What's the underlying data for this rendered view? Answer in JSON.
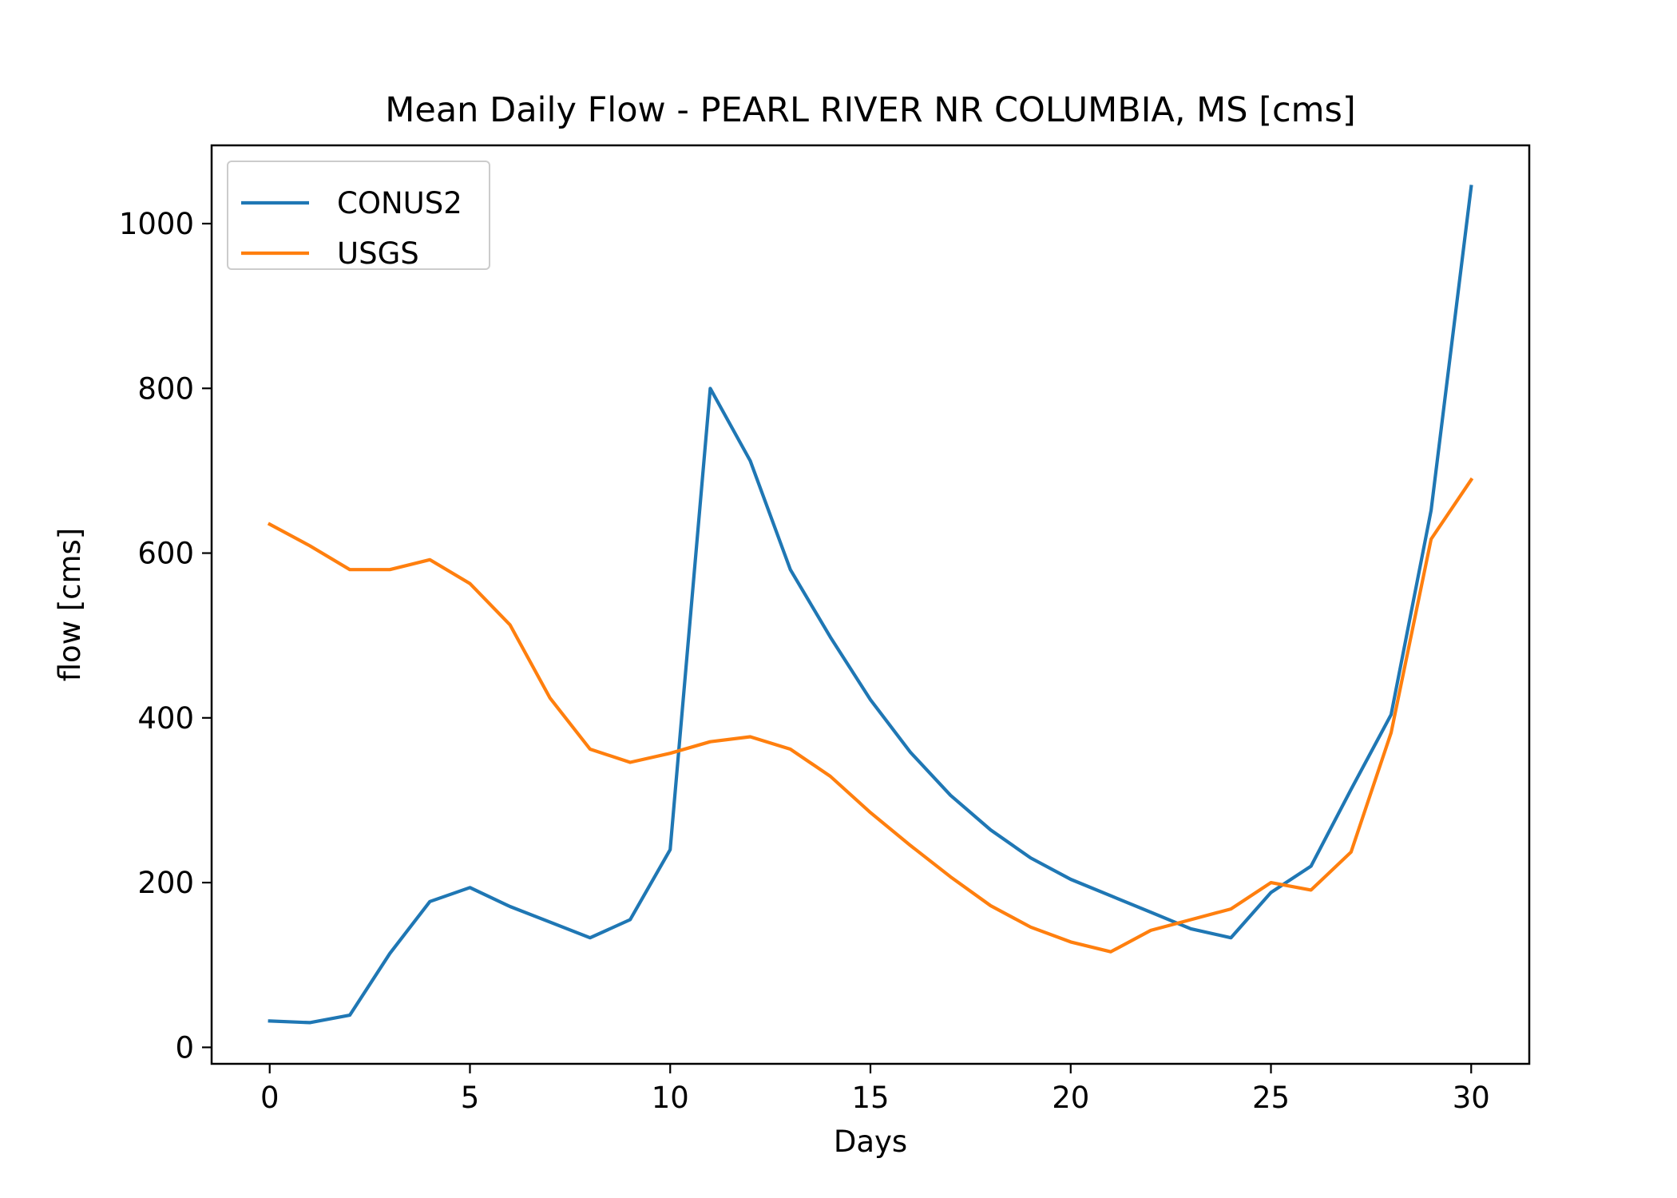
{
  "chart_data": {
    "type": "line",
    "title": "Mean Daily Flow - PEARL RIVER NR COLUMBIA, MS [cms]",
    "xlabel": "Days",
    "ylabel": "flow [cms]",
    "xlim": [
      -1.45,
      31.45
    ],
    "ylim": [
      -20,
      1095
    ],
    "xticks": [
      0,
      5,
      10,
      15,
      20,
      25,
      30
    ],
    "xtick_labels": [
      "0",
      "5",
      "10",
      "15",
      "20",
      "25",
      "30"
    ],
    "yticks": [
      0,
      200,
      400,
      600,
      800,
      1000
    ],
    "ytick_labels": [
      "0",
      "200",
      "400",
      "600",
      "800",
      "1000"
    ],
    "grid": false,
    "legend": {
      "position": "upper-left"
    },
    "x": [
      0,
      1,
      2,
      3,
      4,
      5,
      6,
      7,
      8,
      9,
      10,
      11,
      12,
      13,
      14,
      15,
      16,
      17,
      18,
      19,
      20,
      21,
      22,
      23,
      24,
      25,
      26,
      27,
      28,
      29,
      30
    ],
    "series": [
      {
        "name": "CONUS2",
        "color": "#1f77b4",
        "values": [
          32,
          30,
          39,
          114,
          177,
          194,
          171,
          152,
          133,
          155,
          240,
          800,
          712,
          580,
          498,
          422,
          358,
          306,
          264,
          230,
          204,
          184,
          164,
          144,
          133,
          188,
          220,
          313,
          404,
          652,
          1045
        ]
      },
      {
        "name": "USGS",
        "color": "#ff7f0e",
        "values": [
          635,
          609,
          580,
          580,
          592,
          563,
          513,
          424,
          362,
          346,
          357,
          371,
          377,
          362,
          329,
          285,
          245,
          207,
          172,
          146,
          128,
          116,
          142,
          155,
          168,
          200,
          191,
          237,
          382,
          617,
          689
        ]
      }
    ]
  }
}
